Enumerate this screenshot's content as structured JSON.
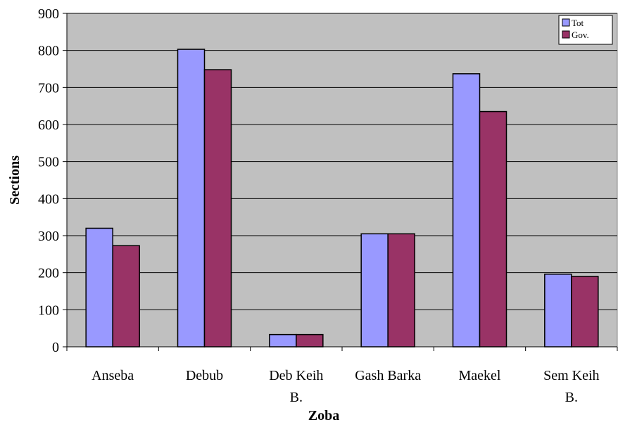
{
  "chart_data": {
    "type": "bar",
    "title": "",
    "xlabel": "Zoba",
    "ylabel": "Sections",
    "ylim": [
      0,
      900
    ],
    "yticks": [
      0,
      100,
      200,
      300,
      400,
      500,
      600,
      700,
      800,
      900
    ],
    "categories": [
      [
        "Anseba"
      ],
      [
        "Debub"
      ],
      [
        "Deb Keih",
        "B."
      ],
      [
        "Gash Barka"
      ],
      [
        "Maekel"
      ],
      [
        "Sem Keih",
        "B."
      ]
    ],
    "series": [
      {
        "name": "Tot",
        "values": [
          320,
          803,
          33,
          305,
          737,
          196
        ]
      },
      {
        "name": "Gov.",
        "values": [
          273,
          748,
          33,
          305,
          635,
          190
        ]
      }
    ],
    "grid": true,
    "legend_position": "top-right"
  },
  "colors": {
    "plot_background": "#c0c0c0",
    "gridline": "#000000",
    "series": [
      "#9999ff",
      "#993366"
    ],
    "bar_outline": "#000000"
  }
}
